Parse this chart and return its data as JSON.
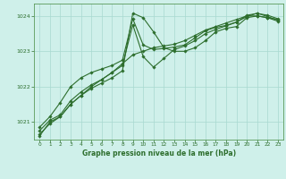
{
  "title": "Graphe pression niveau de la mer (hPa)",
  "bg_color": "#cff0ea",
  "grid_color": "#a8d8d0",
  "line_color": "#2d6e2d",
  "marker_color": "#2d6e2d",
  "ylim": [
    1020.5,
    1024.35
  ],
  "yticks": [
    1021,
    1022,
    1023,
    1024
  ],
  "xlim": [
    -0.5,
    23.5
  ],
  "xticks": [
    0,
    1,
    2,
    3,
    4,
    5,
    6,
    7,
    8,
    9,
    10,
    11,
    12,
    13,
    14,
    15,
    16,
    17,
    18,
    19,
    20,
    21,
    22,
    23
  ],
  "series": [
    [
      1020.65,
      1020.95,
      1021.15,
      1021.5,
      1021.75,
      1021.95,
      1022.1,
      1022.25,
      1022.45,
      1024.08,
      1023.95,
      1023.55,
      1023.1,
      1023.0,
      1023.0,
      1023.1,
      1023.3,
      1023.55,
      1023.65,
      1023.7,
      1023.95,
      1024.0,
      1023.95,
      1023.9
    ],
    [
      1020.75,
      1021.05,
      1021.2,
      1021.6,
      1021.85,
      1022.05,
      1022.2,
      1022.4,
      1022.6,
      1023.75,
      1022.85,
      1022.55,
      1022.8,
      1023.05,
      1023.15,
      1023.3,
      1023.5,
      1023.62,
      1023.72,
      1023.82,
      1024.02,
      1024.07,
      1024.02,
      1023.92
    ],
    [
      1020.85,
      1021.15,
      1021.55,
      1022.0,
      1022.25,
      1022.4,
      1022.5,
      1022.6,
      1022.75,
      1023.92,
      1023.18,
      1023.05,
      1023.08,
      1023.12,
      1023.18,
      1023.38,
      1023.58,
      1023.68,
      1023.73,
      1023.83,
      1023.98,
      1024.08,
      1023.98,
      1023.88
    ],
    [
      1020.6,
      1021.0,
      1021.15,
      1021.5,
      1021.75,
      1022.0,
      1022.2,
      1022.4,
      1022.65,
      1022.9,
      1023.0,
      1023.1,
      1023.15,
      1023.2,
      1023.3,
      1023.45,
      1023.6,
      1023.7,
      1023.8,
      1023.9,
      1024.0,
      1024.0,
      1023.95,
      1023.85
    ]
  ]
}
